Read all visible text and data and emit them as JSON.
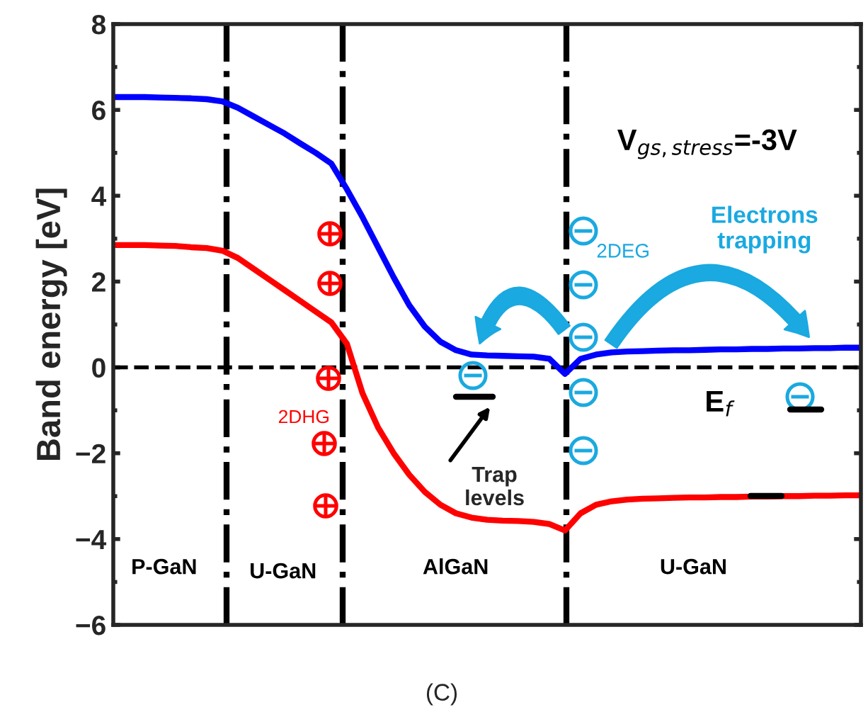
{
  "chart_data": {
    "type": "line",
    "ylabel": "Band energy [eV]",
    "categories": [
      null,
      null,
      null,
      null,
      null,
      null,
      null,
      null,
      null,
      null,
      null,
      null,
      null,
      null,
      null,
      null,
      null,
      null,
      null,
      null,
      null,
      null,
      null,
      null,
      null,
      null,
      null,
      null,
      null,
      null,
      null,
      null,
      null,
      null,
      null,
      null,
      null,
      null,
      null,
      null,
      null,
      null,
      null,
      null,
      null,
      null,
      null,
      null,
      null
    ],
    "series": [
      {
        "color": "#0000ff",
        "values": [
          6.3,
          6.3,
          6.3,
          6.29,
          6.28,
          6.27,
          6.25,
          6.2,
          6.05,
          5.85,
          5.65,
          5.45,
          5.22,
          5.0,
          4.75,
          4.15,
          3.5,
          2.8,
          2.1,
          1.45,
          0.95,
          0.6,
          0.4,
          0.3,
          0.28,
          0.27,
          0.26,
          0.25,
          0.2,
          -0.15,
          0.2,
          0.3,
          0.35,
          0.37,
          0.38,
          0.39,
          0.4,
          0.4,
          0.41,
          0.42,
          0.42,
          0.43,
          0.43,
          0.44,
          0.44,
          0.45,
          0.45,
          0.46,
          0.46
        ]
      },
      {
        "color": "#ff0000",
        "values": [
          2.85,
          2.85,
          2.85,
          2.84,
          2.83,
          2.8,
          2.78,
          2.72,
          2.55,
          2.3,
          2.05,
          1.8,
          1.55,
          1.3,
          1.05,
          0.55,
          -0.6,
          -1.4,
          -2.0,
          -2.5,
          -2.9,
          -3.2,
          -3.4,
          -3.5,
          -3.55,
          -3.57,
          -3.58,
          -3.6,
          -3.65,
          -3.8,
          -3.4,
          -3.2,
          -3.12,
          -3.08,
          -3.06,
          -3.05,
          -3.04,
          -3.03,
          -3.03,
          -3.02,
          -3.02,
          -3.01,
          -3.01,
          -3.0,
          -3.0,
          -2.99,
          -2.99,
          -2.98,
          -2.98
        ]
      }
    ],
    "ylim": [
      -6,
      8
    ],
    "yticks": [
      {
        "value": -6,
        "label": "−6"
      },
      {
        "value": -4,
        "label": "−4"
      },
      {
        "value": -2,
        "label": "−2"
      },
      0,
      2,
      4,
      6,
      8
    ],
    "tick_labels": "y",
    "grid": false,
    "legend": false,
    "marker": "none",
    "line_style": "solid",
    "ref_lines": [
      {
        "axis": "y",
        "value": 0,
        "color": "#000000",
        "line_style": "dashed"
      }
    ],
    "annotations": [
      "V$_{gs,stress}$=-3V",
      "Electrons\ntrapping",
      "2DEG",
      "2DHG",
      "E$_{f}$",
      "Trap\nlevels",
      "P-GaN",
      "U-GaN",
      "AlGaN",
      "U-GaN",
      "(C)"
    ]
  }
}
